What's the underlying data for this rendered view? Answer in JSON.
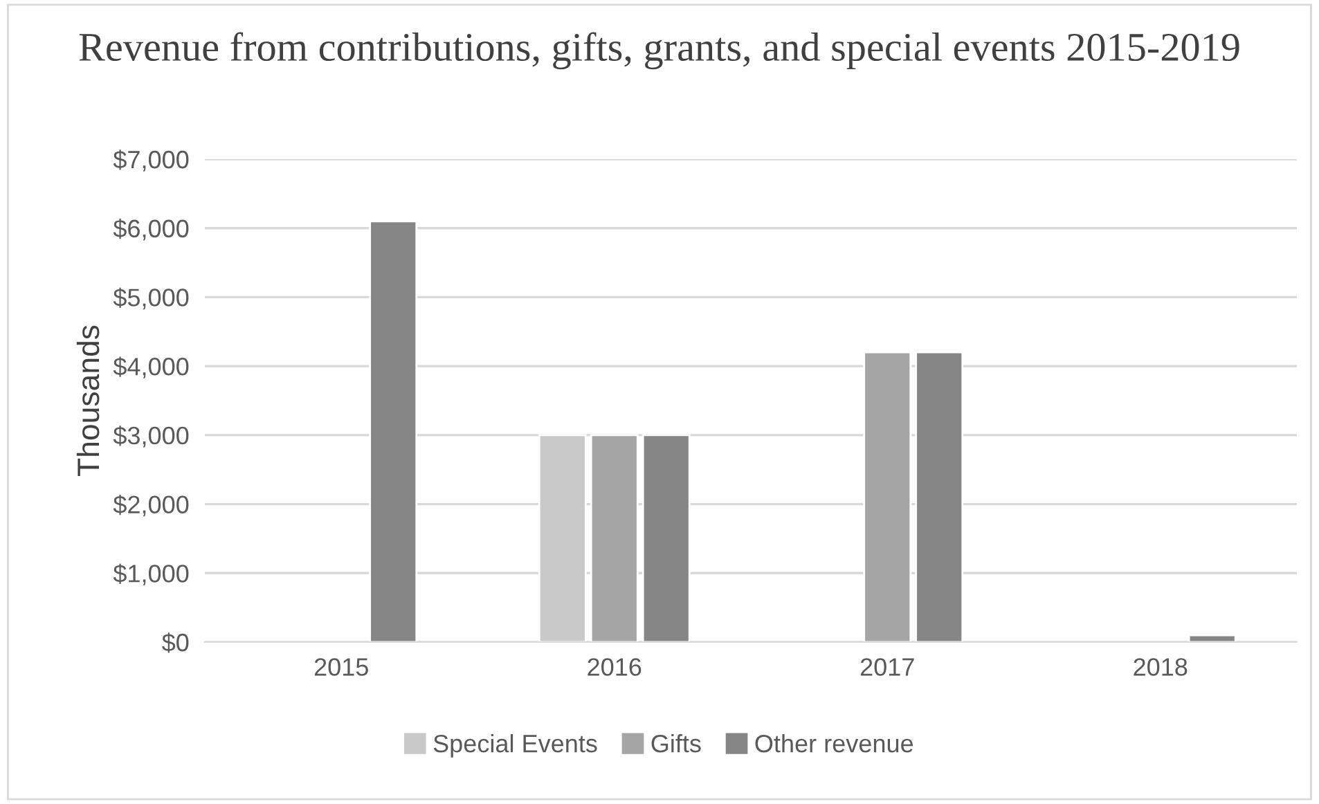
{
  "chart_data": {
    "type": "bar",
    "title": "Revenue from contributions, gifts, grants, and special events 2015-2019",
    "ylabel": "Thousands",
    "categories": [
      "2015",
      "2016",
      "2017",
      "2018"
    ],
    "series": [
      {
        "name": "Special Events",
        "color": "#c9c9c9",
        "values": [
          null,
          3000,
          null,
          null
        ]
      },
      {
        "name": "Gifts",
        "color": "#a5a5a5",
        "values": [
          null,
          3000,
          4200,
          null
        ]
      },
      {
        "name": "Other revenue",
        "color": "#868686",
        "values": [
          6100,
          3000,
          4200,
          100
        ]
      }
    ],
    "ylim": [
      0,
      7000
    ],
    "yticks": [
      {
        "value": 0,
        "label": "$0"
      },
      {
        "value": 1000,
        "label": "$1,000"
      },
      {
        "value": 2000,
        "label": "$2,000"
      },
      {
        "value": 3000,
        "label": "$3,000"
      },
      {
        "value": 4000,
        "label": "$4,000"
      },
      {
        "value": 5000,
        "label": "$5,000"
      },
      {
        "value": 6000,
        "label": "$6,000"
      },
      {
        "value": 7000,
        "label": "$7,000"
      }
    ],
    "grid": "y",
    "legend": "bottom"
  }
}
